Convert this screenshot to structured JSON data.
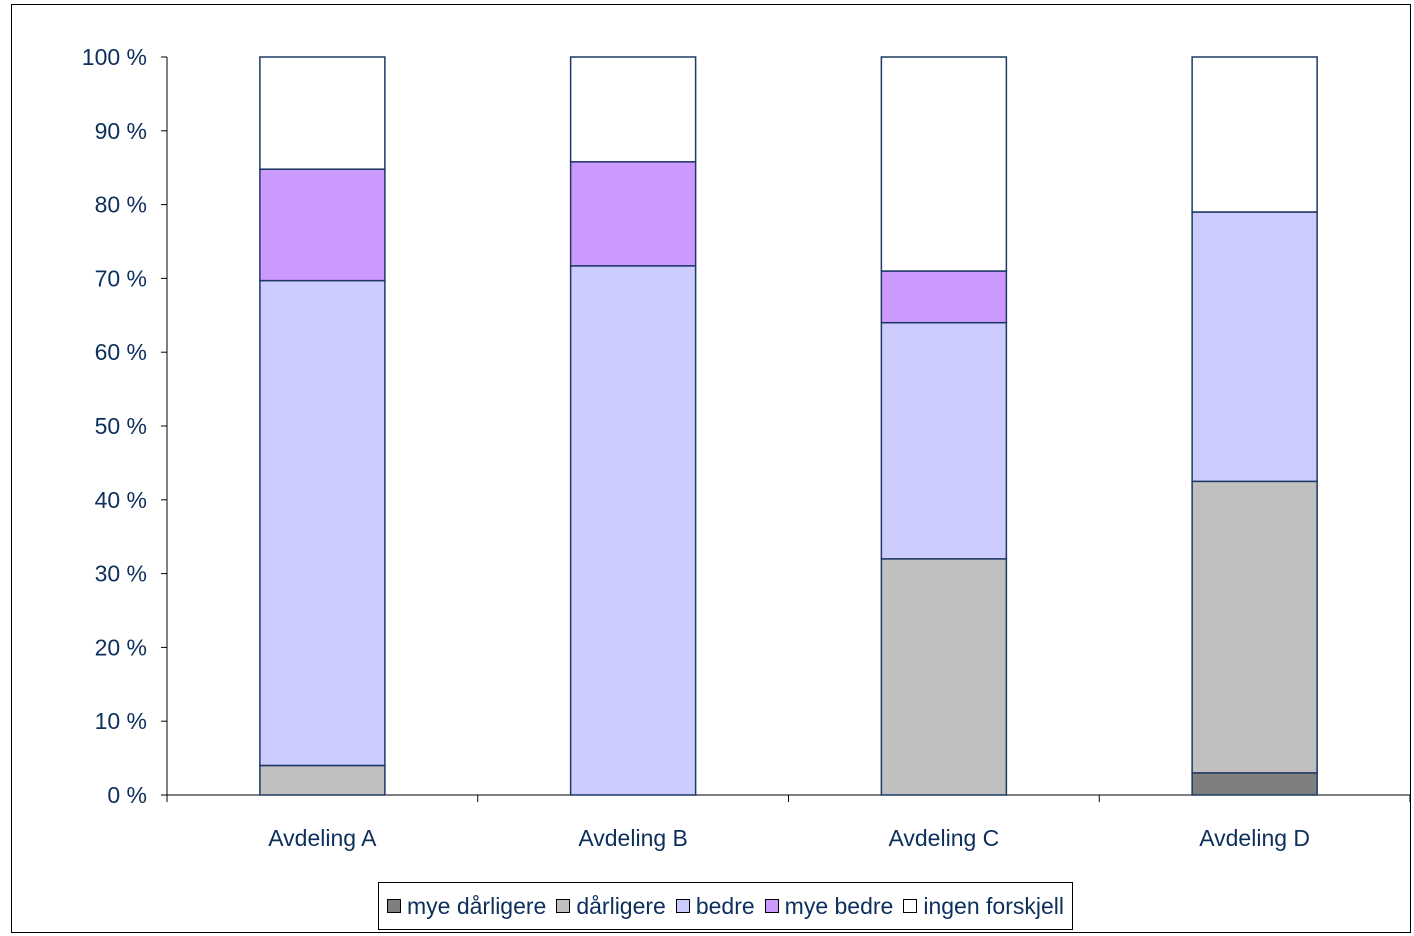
{
  "chart_data": {
    "type": "bar",
    "stacked": true,
    "categories": [
      "Avdeling A",
      "Avdeling B",
      "Avdeling C",
      "Avdeling D"
    ],
    "series": [
      {
        "name": "mye dårligere",
        "color": "#7f7f7f",
        "values": [
          0,
          0,
          0,
          3
        ]
      },
      {
        "name": "dårligere",
        "color": "#c0c0c0",
        "values": [
          4,
          0,
          32,
          39.5
        ]
      },
      {
        "name": "bedre",
        "color": "#ccccff",
        "values": [
          65.7,
          71.7,
          32,
          36.5
        ]
      },
      {
        "name": "mye bedre",
        "color": "#cc99ff",
        "values": [
          15.1,
          14.1,
          7,
          0
        ]
      },
      {
        "name": "ingen forskjell",
        "color": "#ffffff",
        "values": [
          15.2,
          14.2,
          29,
          21
        ]
      }
    ],
    "y_ticks": [
      "0 %",
      "10 %",
      "20 %",
      "30 %",
      "40 %",
      "50 %",
      "60 %",
      "70 %",
      "80 %",
      "90 %",
      "100 %"
    ],
    "ylim": [
      0,
      100
    ],
    "grid": false,
    "legend_position": "bottom",
    "bar_outline_color": "#1f3864",
    "text_color": "#0d2f5c"
  }
}
